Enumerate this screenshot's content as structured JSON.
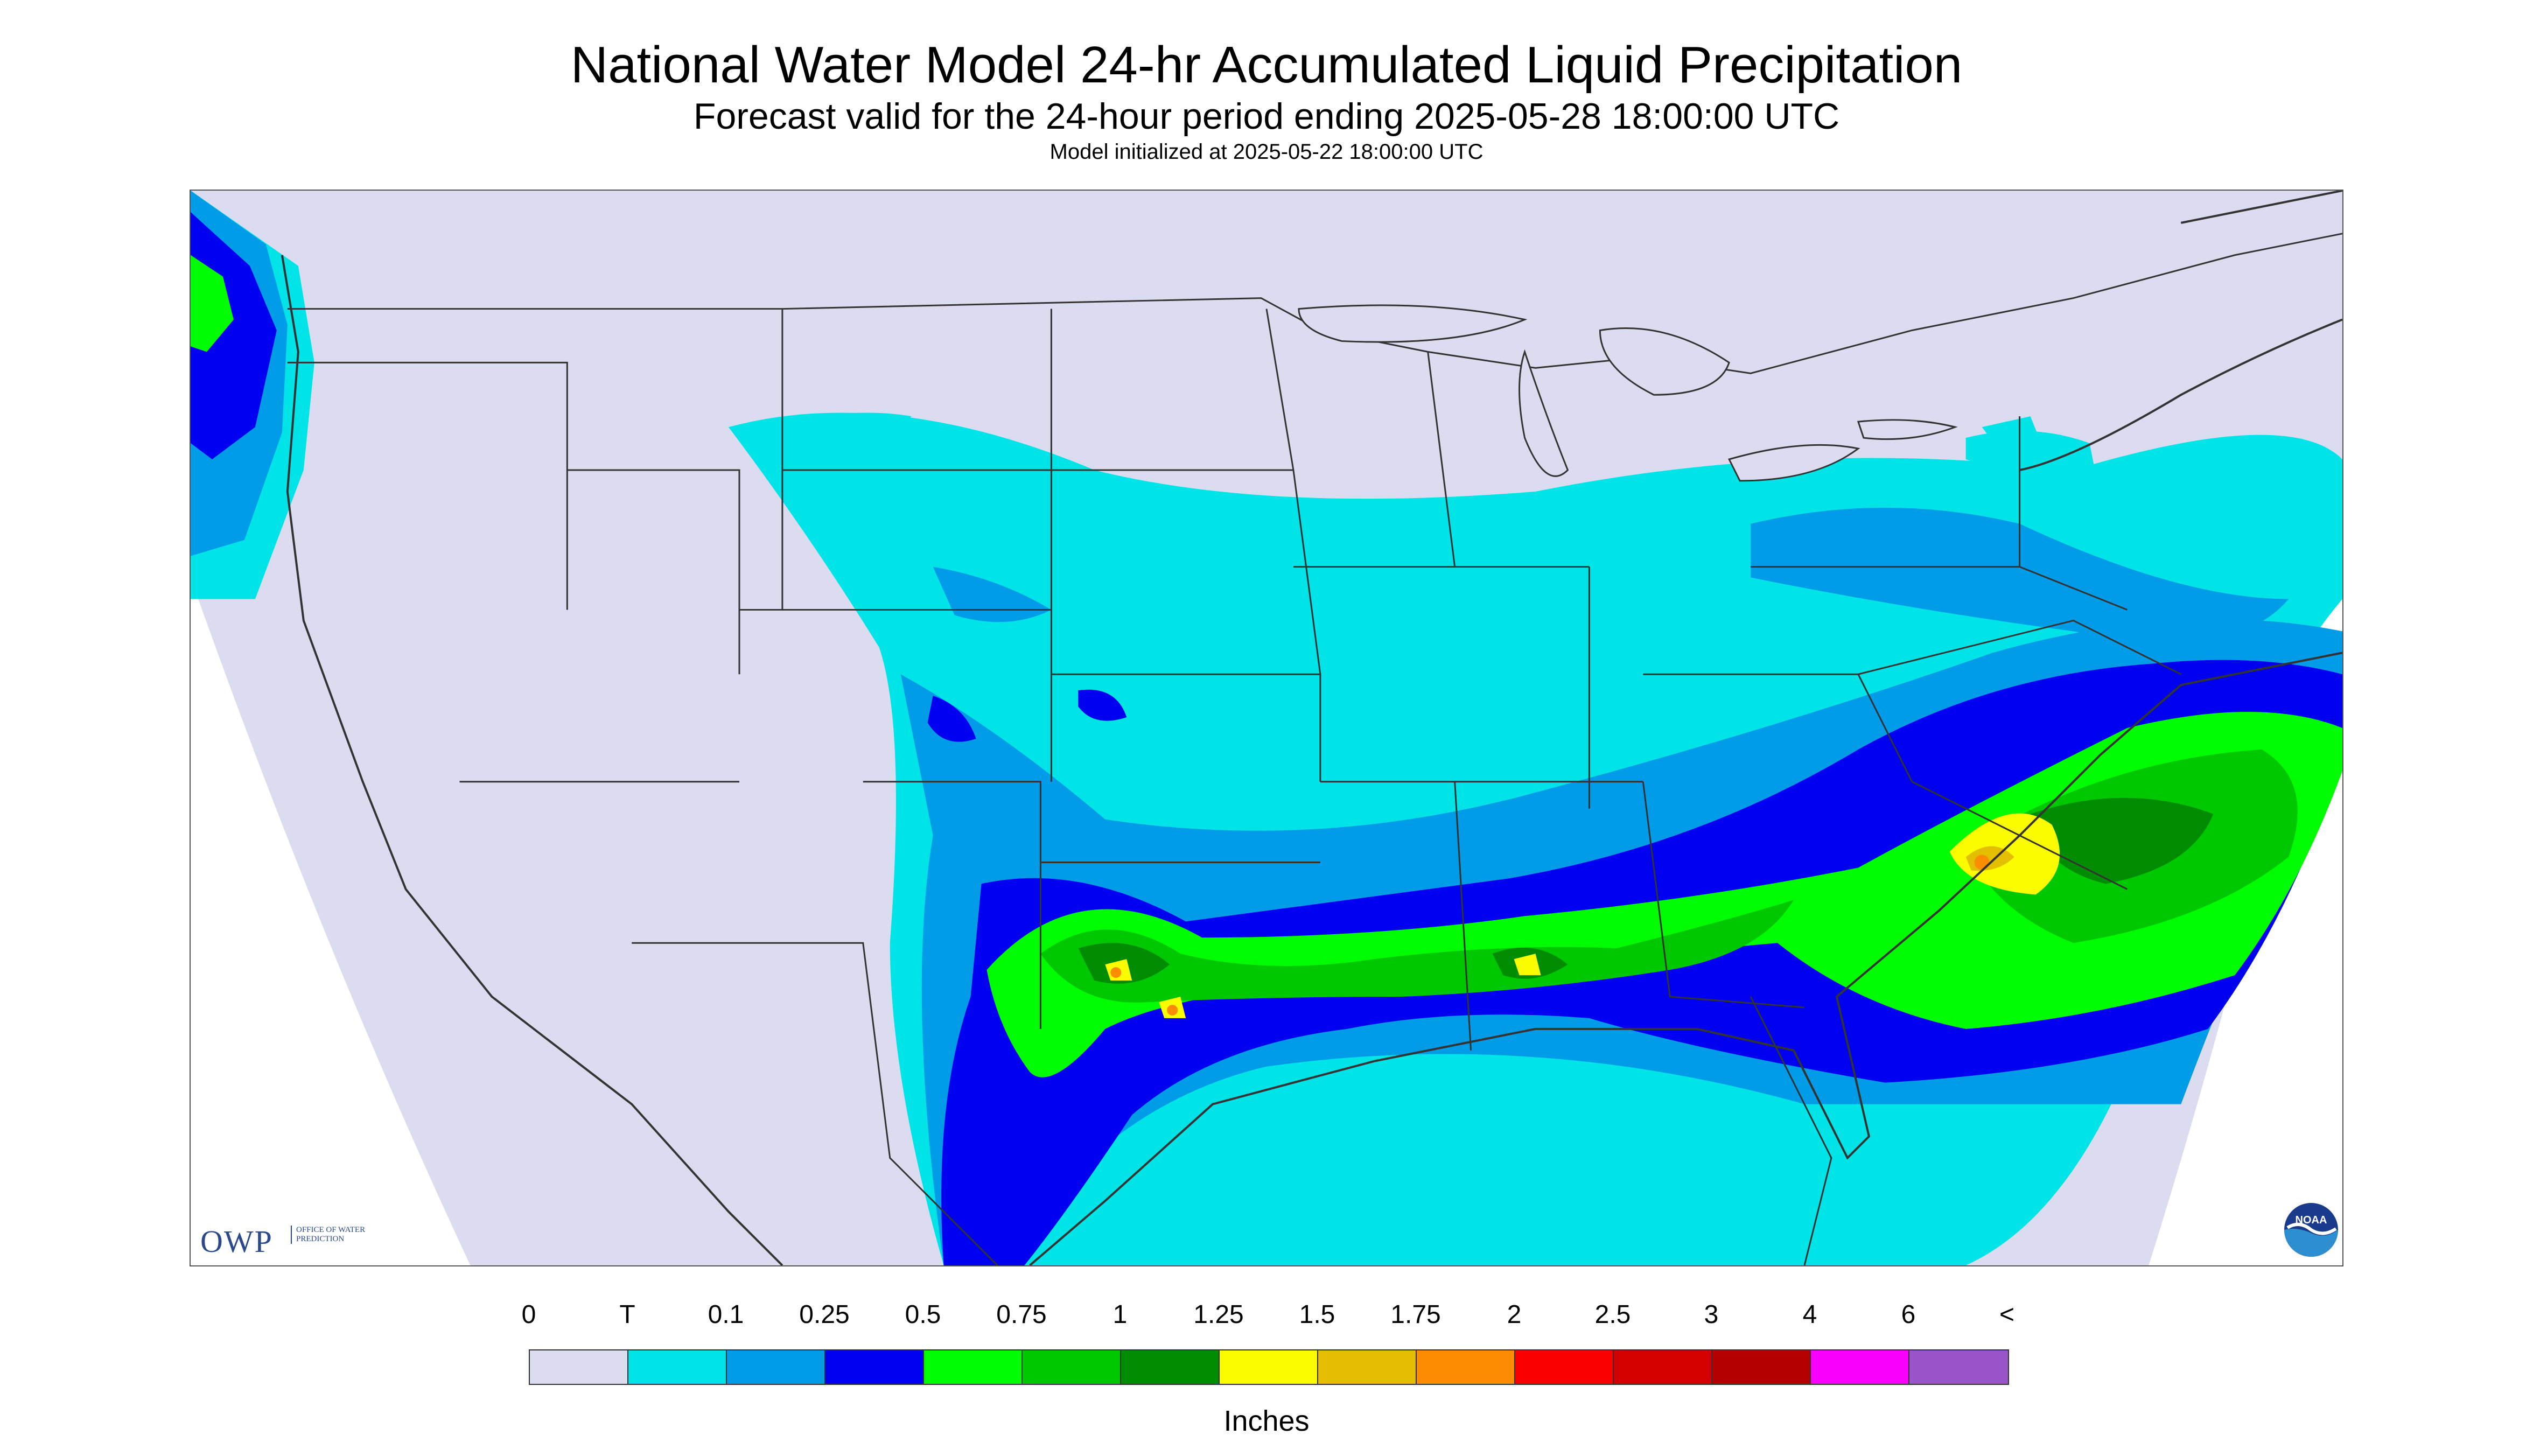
{
  "header": {
    "title": "National Water Model 24-hr Accumulated Liquid Precipitation",
    "subtitle": "Forecast valid for the 24-hour period ending 2025-05-28 18:00:00 UTC",
    "init": "Model initialized at 2025-05-22 18:00:00 UTC"
  },
  "logos": {
    "owp_letters": "OWP",
    "owp_text": "OFFICE OF WATER PREDICTION",
    "noaa_text": "NOAA"
  },
  "legend": {
    "labels": [
      "0",
      "T",
      "0.1",
      "0.25",
      "0.5",
      "0.75",
      "1",
      "1.25",
      "1.5",
      "1.75",
      "2",
      "2.5",
      "3",
      "4",
      "6",
      "<"
    ],
    "colors": [
      "#dcdcf0",
      "#00e4e8",
      "#009ce8",
      "#0000f0",
      "#00fc00",
      "#00c800",
      "#008c00",
      "#fcfc00",
      "#e4be00",
      "#fc8c00",
      "#fc0000",
      "#d40000",
      "#b40000",
      "#f800fc",
      "#9854c8"
    ],
    "units": "Inches"
  },
  "map_colors": {
    "background": "#dcdcf0",
    "boundary": "#333333"
  }
}
